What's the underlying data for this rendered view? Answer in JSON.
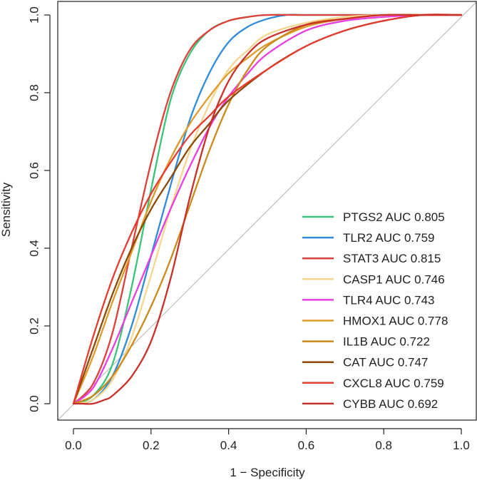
{
  "chart_data": {
    "type": "line",
    "title": "",
    "xlabel": "1 − Specificity",
    "ylabel": "Sensitivity",
    "xlim": [
      0.0,
      1.0
    ],
    "ylim": [
      0.0,
      1.0
    ],
    "x_ticks": [
      "0.0",
      "0.2",
      "0.4",
      "0.6",
      "0.8",
      "1.0"
    ],
    "y_ticks": [
      "0.0",
      "0.2",
      "0.4",
      "0.6",
      "0.8",
      "1.0"
    ],
    "grid": false,
    "legend_position": "bottom-right",
    "reference_line": {
      "from": [
        0,
        0
      ],
      "to": [
        1,
        1
      ],
      "color": "#b5b5b5"
    },
    "series": [
      {
        "name": "PTGS2",
        "label": "PTGS2 AUC 0.805",
        "auc": 0.805,
        "color": "#3cc37a",
        "x": [
          0,
          0.05,
          0.1,
          0.15,
          0.2,
          0.25,
          0.3,
          0.35,
          0.4,
          0.45,
          0.5,
          0.6,
          0.8,
          1.0
        ],
        "y": [
          0,
          0.02,
          0.1,
          0.3,
          0.55,
          0.78,
          0.9,
          0.96,
          0.985,
          0.995,
          1.0,
          1.0,
          1.0,
          1.0
        ]
      },
      {
        "name": "TLR2",
        "label": "TLR2 AUC 0.759",
        "auc": 0.759,
        "color": "#2f8bdc",
        "x": [
          0,
          0.05,
          0.1,
          0.15,
          0.2,
          0.25,
          0.3,
          0.35,
          0.4,
          0.45,
          0.5,
          0.55,
          0.6,
          0.8,
          1.0
        ],
        "y": [
          0,
          0.01,
          0.07,
          0.2,
          0.38,
          0.56,
          0.73,
          0.85,
          0.93,
          0.97,
          0.99,
          1.0,
          1.0,
          1.0,
          1.0
        ]
      },
      {
        "name": "STAT3",
        "label": "STAT3 AUC 0.815",
        "auc": 0.815,
        "color": "#e0403a",
        "x": [
          0,
          0.05,
          0.1,
          0.15,
          0.2,
          0.25,
          0.3,
          0.35,
          0.4,
          0.45,
          0.5,
          0.6,
          0.8,
          1.0
        ],
        "y": [
          0,
          0.05,
          0.18,
          0.4,
          0.62,
          0.8,
          0.91,
          0.96,
          0.985,
          0.995,
          1.0,
          1.0,
          1.0,
          1.0
        ]
      },
      {
        "name": "CASP1",
        "label": "CASP1 AUC 0.746",
        "auc": 0.746,
        "color": "#f6d58e",
        "x": [
          0,
          0.05,
          0.1,
          0.15,
          0.2,
          0.25,
          0.3,
          0.35,
          0.4,
          0.45,
          0.5,
          0.6,
          0.7,
          0.8,
          1.0
        ],
        "y": [
          0,
          0.01,
          0.06,
          0.17,
          0.33,
          0.5,
          0.65,
          0.77,
          0.86,
          0.91,
          0.95,
          0.98,
          0.995,
          1.0,
          1.0
        ]
      },
      {
        "name": "TLR4",
        "label": "TLR4 AUC 0.743",
        "auc": 0.743,
        "color": "#e93ee0",
        "x": [
          0,
          0.05,
          0.1,
          0.15,
          0.2,
          0.25,
          0.3,
          0.35,
          0.4,
          0.45,
          0.5,
          0.6,
          0.7,
          0.8,
          0.9,
          1.0
        ],
        "y": [
          0,
          0.04,
          0.14,
          0.26,
          0.38,
          0.5,
          0.61,
          0.71,
          0.79,
          0.85,
          0.9,
          0.96,
          0.985,
          0.995,
          1.0,
          1.0
        ]
      },
      {
        "name": "HMOX1",
        "label": "HMOX1 AUC 0.778",
        "auc": 0.778,
        "color": "#e09a2a",
        "x": [
          0,
          0.05,
          0.1,
          0.15,
          0.2,
          0.25,
          0.3,
          0.35,
          0.4,
          0.45,
          0.5,
          0.6,
          0.7,
          0.8,
          0.9,
          1.0
        ],
        "y": [
          0,
          0.12,
          0.26,
          0.39,
          0.52,
          0.63,
          0.72,
          0.79,
          0.85,
          0.89,
          0.925,
          0.97,
          0.99,
          1.0,
          1.0,
          1.0
        ]
      },
      {
        "name": "IL1B",
        "label": "IL1B AUC 0.722",
        "auc": 0.722,
        "color": "#c98a1c",
        "x": [
          0,
          0.05,
          0.1,
          0.15,
          0.2,
          0.25,
          0.3,
          0.35,
          0.4,
          0.45,
          0.5,
          0.6,
          0.7,
          0.8,
          0.9,
          1.0
        ],
        "y": [
          0,
          0.02,
          0.07,
          0.15,
          0.25,
          0.37,
          0.51,
          0.65,
          0.77,
          0.86,
          0.92,
          0.975,
          0.99,
          1.0,
          1.0,
          1.0
        ]
      },
      {
        "name": "CAT",
        "label": "CAT AUC 0.747",
        "auc": 0.747,
        "color": "#8c4a06",
        "x": [
          0,
          0.05,
          0.1,
          0.15,
          0.2,
          0.25,
          0.3,
          0.35,
          0.4,
          0.5,
          0.6,
          0.7,
          0.8,
          0.9,
          1.0
        ],
        "y": [
          0,
          0.14,
          0.28,
          0.4,
          0.5,
          0.58,
          0.66,
          0.72,
          0.78,
          0.86,
          0.92,
          0.96,
          0.985,
          1.0,
          1.0
        ]
      },
      {
        "name": "CXCL8",
        "label": "CXCL8 AUC 0.759",
        "auc": 0.759,
        "color": "#e63b30",
        "x": [
          0,
          0.05,
          0.1,
          0.15,
          0.2,
          0.25,
          0.3,
          0.35,
          0.4,
          0.5,
          0.6,
          0.7,
          0.8,
          0.9,
          1.0
        ],
        "y": [
          0,
          0.17,
          0.32,
          0.44,
          0.54,
          0.62,
          0.69,
          0.74,
          0.79,
          0.86,
          0.92,
          0.96,
          0.985,
          1.0,
          1.0
        ]
      },
      {
        "name": "CYBB",
        "label": "CYBB AUC 0.692",
        "auc": 0.692,
        "color": "#c8302a",
        "x": [
          0,
          0.02,
          0.05,
          0.08,
          0.1,
          0.15,
          0.2,
          0.25,
          0.3,
          0.35,
          0.4,
          0.45,
          0.5,
          0.6,
          0.7,
          0.8,
          0.9,
          1.0
        ],
        "y": [
          0,
          0.0,
          0.0,
          0.01,
          0.02,
          0.07,
          0.16,
          0.32,
          0.53,
          0.71,
          0.83,
          0.9,
          0.94,
          0.975,
          0.99,
          1.0,
          1.0,
          1.0
        ]
      }
    ]
  }
}
